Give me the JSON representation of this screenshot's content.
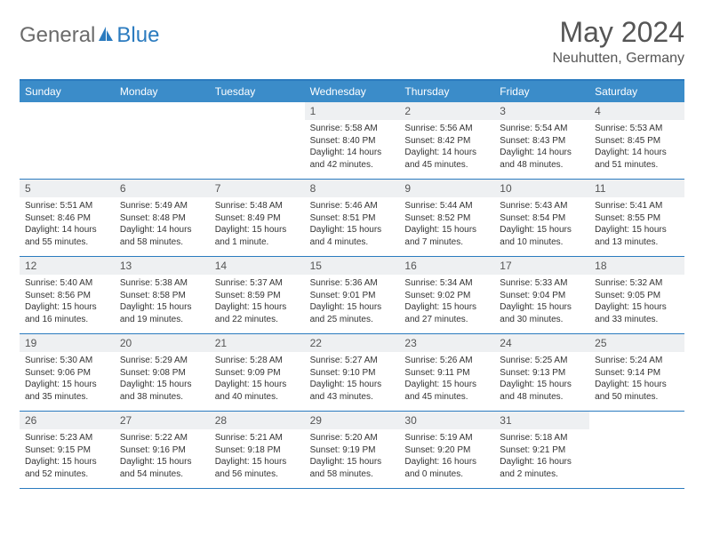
{
  "brand": {
    "part1": "General",
    "part2": "Blue"
  },
  "title": "May 2024",
  "location": "Neuhutten, Germany",
  "weekdays": [
    "Sunday",
    "Monday",
    "Tuesday",
    "Wednesday",
    "Thursday",
    "Friday",
    "Saturday"
  ],
  "colors": {
    "header_bg": "#3b8cc9",
    "rule": "#2b7bbf",
    "daynum_bg": "#eef0f2",
    "text": "#333333",
    "title_text": "#555555"
  },
  "weeks": [
    [
      {
        "n": "",
        "sunrise": "",
        "sunset": "",
        "daylight": ""
      },
      {
        "n": "",
        "sunrise": "",
        "sunset": "",
        "daylight": ""
      },
      {
        "n": "",
        "sunrise": "",
        "sunset": "",
        "daylight": ""
      },
      {
        "n": "1",
        "sunrise": "Sunrise: 5:58 AM",
        "sunset": "Sunset: 8:40 PM",
        "daylight": "Daylight: 14 hours and 42 minutes."
      },
      {
        "n": "2",
        "sunrise": "Sunrise: 5:56 AM",
        "sunset": "Sunset: 8:42 PM",
        "daylight": "Daylight: 14 hours and 45 minutes."
      },
      {
        "n": "3",
        "sunrise": "Sunrise: 5:54 AM",
        "sunset": "Sunset: 8:43 PM",
        "daylight": "Daylight: 14 hours and 48 minutes."
      },
      {
        "n": "4",
        "sunrise": "Sunrise: 5:53 AM",
        "sunset": "Sunset: 8:45 PM",
        "daylight": "Daylight: 14 hours and 51 minutes."
      }
    ],
    [
      {
        "n": "5",
        "sunrise": "Sunrise: 5:51 AM",
        "sunset": "Sunset: 8:46 PM",
        "daylight": "Daylight: 14 hours and 55 minutes."
      },
      {
        "n": "6",
        "sunrise": "Sunrise: 5:49 AM",
        "sunset": "Sunset: 8:48 PM",
        "daylight": "Daylight: 14 hours and 58 minutes."
      },
      {
        "n": "7",
        "sunrise": "Sunrise: 5:48 AM",
        "sunset": "Sunset: 8:49 PM",
        "daylight": "Daylight: 15 hours and 1 minute."
      },
      {
        "n": "8",
        "sunrise": "Sunrise: 5:46 AM",
        "sunset": "Sunset: 8:51 PM",
        "daylight": "Daylight: 15 hours and 4 minutes."
      },
      {
        "n": "9",
        "sunrise": "Sunrise: 5:44 AM",
        "sunset": "Sunset: 8:52 PM",
        "daylight": "Daylight: 15 hours and 7 minutes."
      },
      {
        "n": "10",
        "sunrise": "Sunrise: 5:43 AM",
        "sunset": "Sunset: 8:54 PM",
        "daylight": "Daylight: 15 hours and 10 minutes."
      },
      {
        "n": "11",
        "sunrise": "Sunrise: 5:41 AM",
        "sunset": "Sunset: 8:55 PM",
        "daylight": "Daylight: 15 hours and 13 minutes."
      }
    ],
    [
      {
        "n": "12",
        "sunrise": "Sunrise: 5:40 AM",
        "sunset": "Sunset: 8:56 PM",
        "daylight": "Daylight: 15 hours and 16 minutes."
      },
      {
        "n": "13",
        "sunrise": "Sunrise: 5:38 AM",
        "sunset": "Sunset: 8:58 PM",
        "daylight": "Daylight: 15 hours and 19 minutes."
      },
      {
        "n": "14",
        "sunrise": "Sunrise: 5:37 AM",
        "sunset": "Sunset: 8:59 PM",
        "daylight": "Daylight: 15 hours and 22 minutes."
      },
      {
        "n": "15",
        "sunrise": "Sunrise: 5:36 AM",
        "sunset": "Sunset: 9:01 PM",
        "daylight": "Daylight: 15 hours and 25 minutes."
      },
      {
        "n": "16",
        "sunrise": "Sunrise: 5:34 AM",
        "sunset": "Sunset: 9:02 PM",
        "daylight": "Daylight: 15 hours and 27 minutes."
      },
      {
        "n": "17",
        "sunrise": "Sunrise: 5:33 AM",
        "sunset": "Sunset: 9:04 PM",
        "daylight": "Daylight: 15 hours and 30 minutes."
      },
      {
        "n": "18",
        "sunrise": "Sunrise: 5:32 AM",
        "sunset": "Sunset: 9:05 PM",
        "daylight": "Daylight: 15 hours and 33 minutes."
      }
    ],
    [
      {
        "n": "19",
        "sunrise": "Sunrise: 5:30 AM",
        "sunset": "Sunset: 9:06 PM",
        "daylight": "Daylight: 15 hours and 35 minutes."
      },
      {
        "n": "20",
        "sunrise": "Sunrise: 5:29 AM",
        "sunset": "Sunset: 9:08 PM",
        "daylight": "Daylight: 15 hours and 38 minutes."
      },
      {
        "n": "21",
        "sunrise": "Sunrise: 5:28 AM",
        "sunset": "Sunset: 9:09 PM",
        "daylight": "Daylight: 15 hours and 40 minutes."
      },
      {
        "n": "22",
        "sunrise": "Sunrise: 5:27 AM",
        "sunset": "Sunset: 9:10 PM",
        "daylight": "Daylight: 15 hours and 43 minutes."
      },
      {
        "n": "23",
        "sunrise": "Sunrise: 5:26 AM",
        "sunset": "Sunset: 9:11 PM",
        "daylight": "Daylight: 15 hours and 45 minutes."
      },
      {
        "n": "24",
        "sunrise": "Sunrise: 5:25 AM",
        "sunset": "Sunset: 9:13 PM",
        "daylight": "Daylight: 15 hours and 48 minutes."
      },
      {
        "n": "25",
        "sunrise": "Sunrise: 5:24 AM",
        "sunset": "Sunset: 9:14 PM",
        "daylight": "Daylight: 15 hours and 50 minutes."
      }
    ],
    [
      {
        "n": "26",
        "sunrise": "Sunrise: 5:23 AM",
        "sunset": "Sunset: 9:15 PM",
        "daylight": "Daylight: 15 hours and 52 minutes."
      },
      {
        "n": "27",
        "sunrise": "Sunrise: 5:22 AM",
        "sunset": "Sunset: 9:16 PM",
        "daylight": "Daylight: 15 hours and 54 minutes."
      },
      {
        "n": "28",
        "sunrise": "Sunrise: 5:21 AM",
        "sunset": "Sunset: 9:18 PM",
        "daylight": "Daylight: 15 hours and 56 minutes."
      },
      {
        "n": "29",
        "sunrise": "Sunrise: 5:20 AM",
        "sunset": "Sunset: 9:19 PM",
        "daylight": "Daylight: 15 hours and 58 minutes."
      },
      {
        "n": "30",
        "sunrise": "Sunrise: 5:19 AM",
        "sunset": "Sunset: 9:20 PM",
        "daylight": "Daylight: 16 hours and 0 minutes."
      },
      {
        "n": "31",
        "sunrise": "Sunrise: 5:18 AM",
        "sunset": "Sunset: 9:21 PM",
        "daylight": "Daylight: 16 hours and 2 minutes."
      },
      {
        "n": "",
        "sunrise": "",
        "sunset": "",
        "daylight": ""
      }
    ]
  ]
}
